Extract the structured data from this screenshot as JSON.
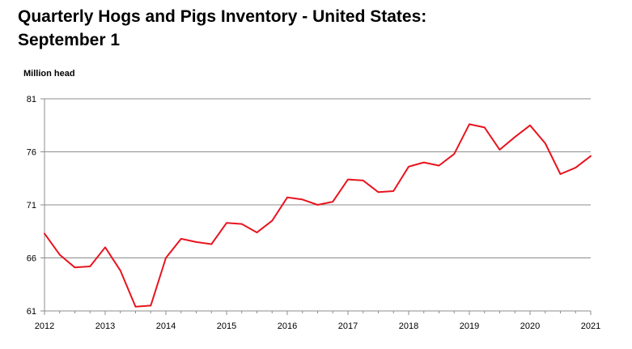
{
  "chart_data": {
    "type": "line",
    "title": "Quarterly Hogs and Pigs Inventory - United States: September 1",
    "title_lines": [
      "Quarterly Hogs and Pigs Inventory - United States:",
      "September 1"
    ],
    "ylabel": "Million head",
    "xlabel": "",
    "ylim": [
      61,
      81
    ],
    "yticks": [
      "61",
      "66",
      "71",
      "76",
      "81"
    ],
    "xlim": [
      2012,
      2021
    ],
    "xticks": [
      "2012",
      "2013",
      "2014",
      "2015",
      "2016",
      "2017",
      "2018",
      "2019",
      "2020",
      "2021"
    ],
    "grid": true,
    "series": [
      {
        "color": "#e8141e",
        "x": [
          2012.0,
          2012.25,
          2012.5,
          2012.75,
          2013.0,
          2013.25,
          2013.5,
          2013.75,
          2014.0,
          2014.25,
          2014.5,
          2014.75,
          2015.0,
          2015.25,
          2015.5,
          2015.75,
          2016.0,
          2016.25,
          2016.5,
          2016.75,
          2017.0,
          2017.25,
          2017.5,
          2017.75,
          2018.0,
          2018.25,
          2018.5,
          2018.75,
          2019.0,
          2019.25,
          2019.5,
          2019.75,
          2020.0,
          2020.25,
          2020.5,
          2020.75,
          2021.0
        ],
        "values": [
          68.3,
          66.3,
          65.1,
          65.2,
          67.0,
          64.8,
          61.4,
          61.5,
          66.0,
          67.8,
          67.5,
          67.3,
          69.3,
          69.2,
          68.4,
          69.5,
          71.7,
          71.5,
          71.0,
          71.3,
          73.4,
          73.3,
          72.2,
          72.3,
          74.6,
          75.0,
          74.7,
          75.8,
          78.6,
          78.3,
          76.2,
          77.4,
          78.5,
          76.8,
          73.9,
          74.5,
          75.6
        ]
      }
    ]
  }
}
